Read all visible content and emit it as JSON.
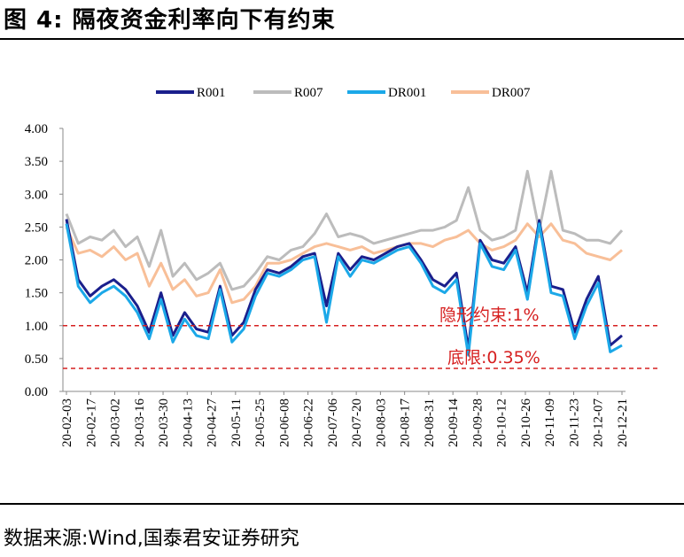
{
  "figure": {
    "title": "图 4:  隔夜资金利率向下有约束",
    "source": "数据来源:Wind,国泰君安证券研究"
  },
  "colors": {
    "R001": "#1a1f8c",
    "R007": "#bcbcbc",
    "DR001": "#1ba8e8",
    "DR007": "#f8bf98",
    "ref": "#d62020"
  },
  "chart_data": {
    "type": "line",
    "title": "",
    "xlabel": "",
    "ylabel": "",
    "ylim": [
      0,
      4
    ],
    "yticks": [
      "0.00",
      "0.50",
      "1.00",
      "1.50",
      "2.00",
      "2.50",
      "3.00",
      "3.50",
      "4.00"
    ],
    "xticks": [
      "20-02-03",
      "20-02-17",
      "20-03-02",
      "20-03-16",
      "20-03-30",
      "20-04-13",
      "20-04-27",
      "20-05-11",
      "20-05-25",
      "20-06-08",
      "20-06-22",
      "20-07-06",
      "20-07-20",
      "20-08-03",
      "20-08-17",
      "20-08-31",
      "20-09-14",
      "20-09-28",
      "20-10-12",
      "20-10-26",
      "20-11-09",
      "20-11-23",
      "20-12-07",
      "20-12-21"
    ],
    "x": [
      "20-02-03",
      "20-02-10",
      "20-02-17",
      "20-02-24",
      "20-03-02",
      "20-03-09",
      "20-03-16",
      "20-03-23",
      "20-03-30",
      "20-04-06",
      "20-04-13",
      "20-04-20",
      "20-04-27",
      "20-05-04",
      "20-05-11",
      "20-05-18",
      "20-05-25",
      "20-06-01",
      "20-06-08",
      "20-06-15",
      "20-06-22",
      "20-06-29",
      "20-07-06",
      "20-07-13",
      "20-07-20",
      "20-07-27",
      "20-08-03",
      "20-08-10",
      "20-08-17",
      "20-08-24",
      "20-08-31",
      "20-09-07",
      "20-09-14",
      "20-09-21",
      "20-09-28",
      "20-10-05",
      "20-10-12",
      "20-10-19",
      "20-10-26",
      "20-11-02",
      "20-11-09",
      "20-11-16",
      "20-11-23",
      "20-11-30",
      "20-12-07",
      "20-12-14",
      "20-12-21",
      "20-12-28"
    ],
    "legend_position": "top",
    "series": [
      {
        "name": "R001",
        "values": [
          2.62,
          1.7,
          1.45,
          1.6,
          1.7,
          1.55,
          1.3,
          0.9,
          1.5,
          0.85,
          1.2,
          0.95,
          0.9,
          1.6,
          0.85,
          1.05,
          1.55,
          1.85,
          1.8,
          1.9,
          2.05,
          2.1,
          1.3,
          2.1,
          1.85,
          2.05,
          2.0,
          2.1,
          2.2,
          2.25,
          2.0,
          1.7,
          1.6,
          1.8,
          0.65,
          2.3,
          2.0,
          1.95,
          2.2,
          1.5,
          2.6,
          1.6,
          1.55,
          0.9,
          1.4,
          1.75,
          0.7,
          0.85
        ]
      },
      {
        "name": "R007",
        "values": [
          2.7,
          2.25,
          2.35,
          2.3,
          2.45,
          2.2,
          2.35,
          1.9,
          2.45,
          1.75,
          1.95,
          1.7,
          1.8,
          1.95,
          1.55,
          1.6,
          1.8,
          2.05,
          2.0,
          2.15,
          2.2,
          2.4,
          2.7,
          2.35,
          2.4,
          2.35,
          2.25,
          2.3,
          2.35,
          2.4,
          2.45,
          2.45,
          2.5,
          2.6,
          3.1,
          2.45,
          2.3,
          2.35,
          2.45,
          3.35,
          2.45,
          3.35,
          2.45,
          2.4,
          2.3,
          2.3,
          2.25,
          2.45
        ]
      },
      {
        "name": "DR001",
        "values": [
          2.55,
          1.6,
          1.35,
          1.5,
          1.6,
          1.45,
          1.2,
          0.8,
          1.4,
          0.75,
          1.1,
          0.85,
          0.8,
          1.55,
          0.75,
          0.95,
          1.45,
          1.8,
          1.75,
          1.85,
          2.0,
          2.05,
          1.05,
          2.05,
          1.75,
          2.0,
          1.95,
          2.05,
          2.15,
          2.2,
          1.95,
          1.6,
          1.5,
          1.7,
          0.55,
          2.25,
          1.9,
          1.85,
          2.15,
          1.4,
          2.55,
          1.5,
          1.45,
          0.8,
          1.3,
          1.65,
          0.6,
          0.7
        ]
      },
      {
        "name": "DR007",
        "values": [
          2.5,
          2.1,
          2.15,
          2.05,
          2.2,
          2.0,
          2.1,
          1.6,
          1.95,
          1.55,
          1.7,
          1.45,
          1.5,
          1.85,
          1.35,
          1.4,
          1.6,
          1.95,
          1.95,
          2.0,
          2.1,
          2.2,
          2.25,
          2.2,
          2.15,
          2.2,
          2.1,
          2.15,
          2.2,
          2.25,
          2.25,
          2.2,
          2.3,
          2.35,
          2.45,
          2.25,
          2.15,
          2.2,
          2.3,
          2.55,
          2.35,
          2.55,
          2.3,
          2.25,
          2.1,
          2.05,
          2.0,
          2.15
        ]
      }
    ],
    "reference_lines": [
      {
        "value": 1.0,
        "label": "隐形约束:1%"
      },
      {
        "value": 0.35,
        "label": "底限:0.35%"
      }
    ]
  }
}
